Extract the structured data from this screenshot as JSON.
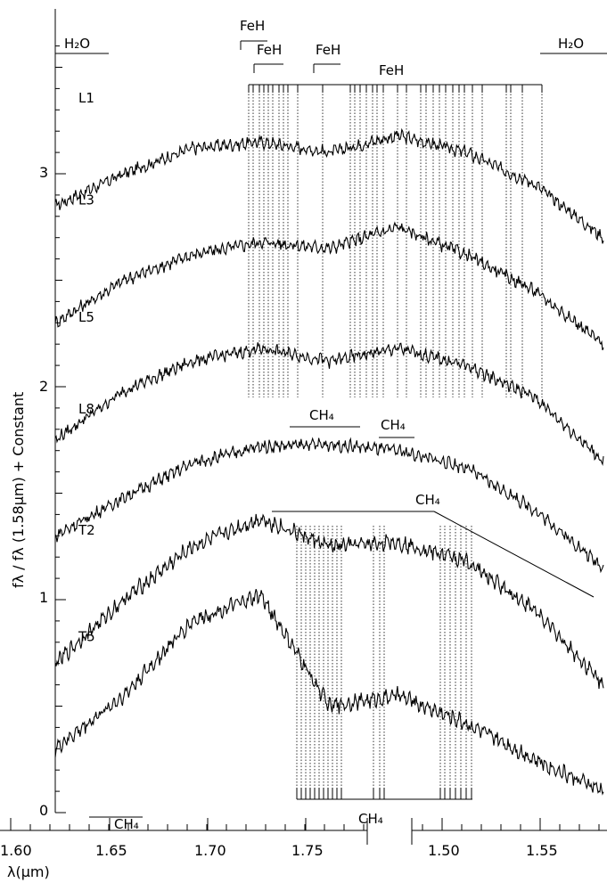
{
  "chart_data": {
    "type": "line",
    "xlabel": "λ(μm)",
    "ylabel": "fλ / fλ (1.58μm) + Constant",
    "xlim": [
      1.6,
      1.58
    ],
    "ylim": [
      0,
      3.7
    ],
    "x_tick_labels": [
      "1.60",
      "1.65",
      "1.70",
      "1.75",
      "1.50",
      "1.55"
    ],
    "x_tick_values": [
      1.6,
      1.65,
      1.7,
      1.75,
      1.5,
      1.55
    ],
    "y_ticks": [
      0,
      1,
      2,
      3
    ],
    "series": [
      {
        "name": "L1",
        "label": "L1",
        "offset": 2.78,
        "x": [
          1.6,
          1.64,
          1.68,
          1.72,
          1.76,
          1.8,
          1.5,
          1.54,
          1.58
        ],
        "values": [
          2.85,
          3.0,
          3.12,
          3.15,
          3.1,
          3.18,
          3.1,
          2.95,
          2.7
        ]
      },
      {
        "name": "L3",
        "label": "L3",
        "offset": 2.3,
        "x": [
          1.6,
          1.64,
          1.68,
          1.72,
          1.76,
          1.8,
          1.5,
          1.54,
          1.58
        ],
        "values": [
          2.3,
          2.5,
          2.62,
          2.68,
          2.65,
          2.75,
          2.62,
          2.45,
          2.2
        ]
      },
      {
        "name": "L5",
        "label": "L5",
        "offset": 1.75,
        "x": [
          1.6,
          1.64,
          1.68,
          1.72,
          1.76,
          1.8,
          1.5,
          1.54,
          1.58
        ],
        "values": [
          1.75,
          1.98,
          2.12,
          2.18,
          2.12,
          2.18,
          2.1,
          1.95,
          1.65
        ]
      },
      {
        "name": "L8",
        "label": "L8",
        "offset": 1.32,
        "x": [
          1.6,
          1.64,
          1.68,
          1.72,
          1.76,
          1.8,
          1.5,
          1.54,
          1.58
        ],
        "values": [
          1.3,
          1.48,
          1.64,
          1.72,
          1.73,
          1.7,
          1.62,
          1.42,
          1.15
        ]
      },
      {
        "name": "T2",
        "label": "T2",
        "offset": 0.75,
        "x": [
          1.6,
          1.64,
          1.68,
          1.72,
          1.76,
          1.8,
          1.5,
          1.54,
          1.58
        ],
        "values": [
          0.7,
          1.0,
          1.25,
          1.38,
          1.25,
          1.27,
          1.18,
          0.95,
          0.6
        ]
      },
      {
        "name": "T5",
        "label": "T5",
        "offset": 0.25,
        "x": [
          1.6,
          1.64,
          1.68,
          1.72,
          1.76,
          1.8,
          1.5,
          1.54,
          1.58
        ],
        "values": [
          0.3,
          0.55,
          0.9,
          1.02,
          0.5,
          0.55,
          0.42,
          0.25,
          0.1
        ]
      }
    ],
    "annotations": {
      "h2o_left": "H₂O",
      "h2o_right": "H₂O",
      "feh_1": "FeH",
      "feh_2": "FeH",
      "feh_3": "FeH",
      "feh_4": "FeH",
      "ch4_1": "CH₄",
      "ch4_2": "CH₄",
      "ch4_3": "CH₄",
      "ch4_bottom_left": "CH₄",
      "ch4_bottom_mid": "CH₄"
    }
  }
}
